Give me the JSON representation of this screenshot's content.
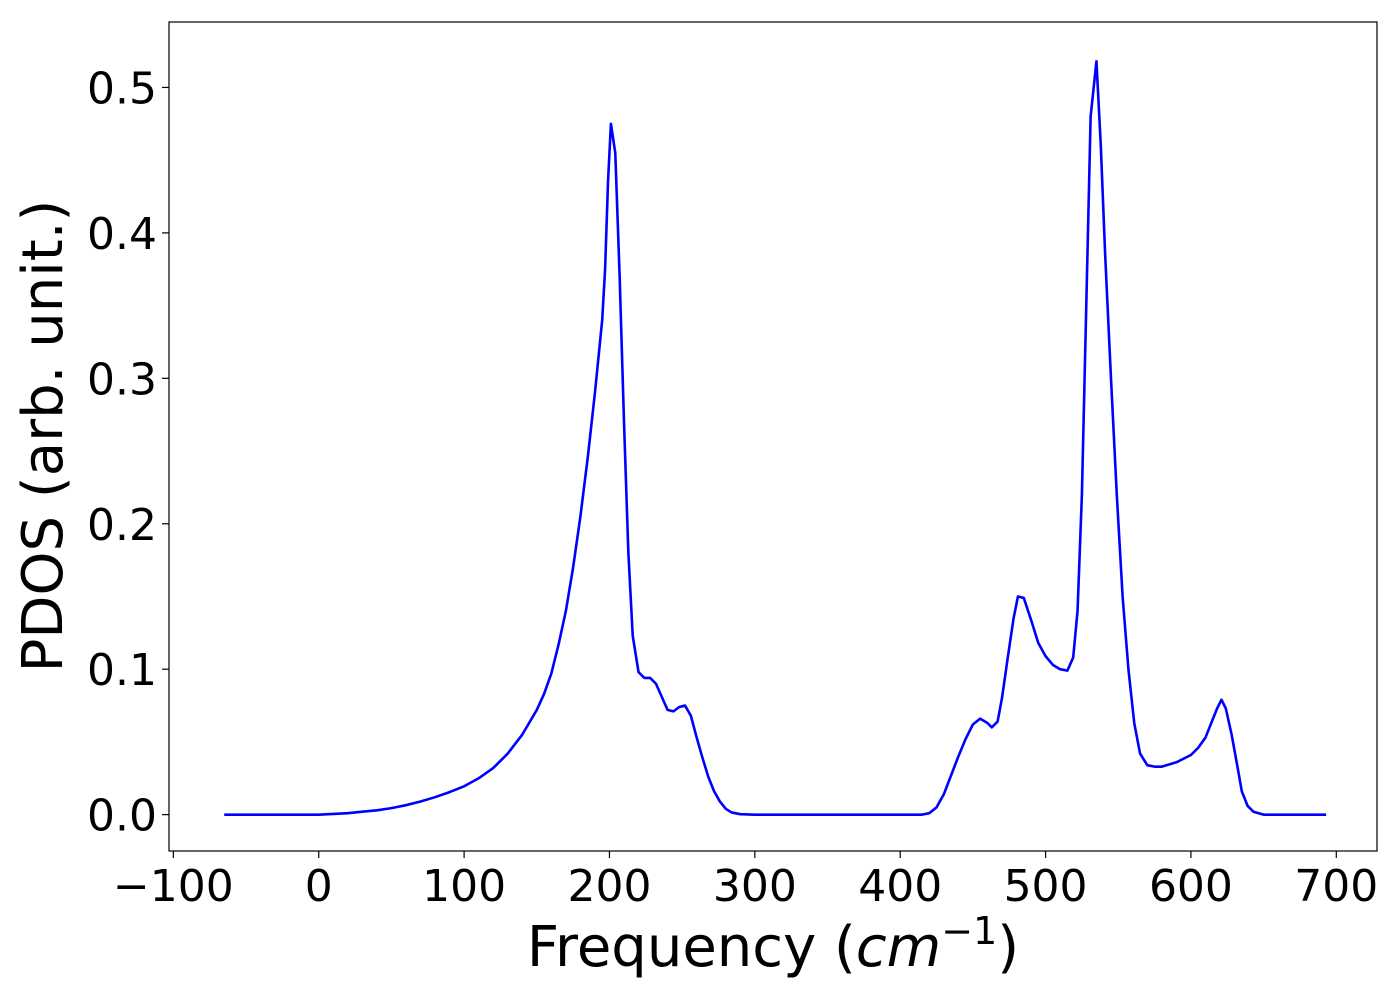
{
  "chart_data": {
    "type": "line",
    "title": "",
    "xlabel": "Frequency",
    "xlabel_unit_base": "cm",
    "xlabel_unit_exp": "−1",
    "ylabel": "PDOS (arb. unit.)",
    "xlim": [
      -103,
      728
    ],
    "ylim": [
      -0.025,
      0.545
    ],
    "xticks": [
      -100,
      0,
      100,
      200,
      300,
      400,
      500,
      600,
      700
    ],
    "xtick_labels": [
      "−100",
      "0",
      "100",
      "200",
      "300",
      "400",
      "500",
      "600",
      "700"
    ],
    "yticks": [
      0.0,
      0.1,
      0.2,
      0.3,
      0.4,
      0.5
    ],
    "ytick_labels": [
      "0.0",
      "0.1",
      "0.2",
      "0.3",
      "0.4",
      "0.5"
    ],
    "grid": false,
    "legend": "none",
    "series": [
      {
        "color": "#0000ff",
        "points": [
          [
            -65,
            0.0
          ],
          [
            -40,
            0.0
          ],
          [
            -20,
            0.0
          ],
          [
            0,
            0.0
          ],
          [
            10,
            0.0005
          ],
          [
            20,
            0.001
          ],
          [
            30,
            0.002
          ],
          [
            40,
            0.003
          ],
          [
            50,
            0.0045
          ],
          [
            60,
            0.0065
          ],
          [
            70,
            0.009
          ],
          [
            80,
            0.012
          ],
          [
            90,
            0.0155
          ],
          [
            100,
            0.0195
          ],
          [
            110,
            0.025
          ],
          [
            120,
            0.032
          ],
          [
            130,
            0.042
          ],
          [
            140,
            0.055
          ],
          [
            150,
            0.072
          ],
          [
            155,
            0.083
          ],
          [
            160,
            0.097
          ],
          [
            165,
            0.117
          ],
          [
            170,
            0.14
          ],
          [
            175,
            0.17
          ],
          [
            180,
            0.205
          ],
          [
            185,
            0.245
          ],
          [
            190,
            0.29
          ],
          [
            195,
            0.34
          ],
          [
            197,
            0.375
          ],
          [
            199,
            0.435
          ],
          [
            201,
            0.475
          ],
          [
            204,
            0.455
          ],
          [
            207,
            0.37
          ],
          [
            210,
            0.27
          ],
          [
            213,
            0.18
          ],
          [
            216,
            0.123
          ],
          [
            220,
            0.098
          ],
          [
            224,
            0.094
          ],
          [
            228,
            0.094
          ],
          [
            232,
            0.09
          ],
          [
            236,
            0.081
          ],
          [
            240,
            0.072
          ],
          [
            244,
            0.071
          ],
          [
            248,
            0.074
          ],
          [
            252,
            0.075
          ],
          [
            256,
            0.068
          ],
          [
            260,
            0.053
          ],
          [
            264,
            0.039
          ],
          [
            268,
            0.026
          ],
          [
            272,
            0.016
          ],
          [
            276,
            0.009
          ],
          [
            280,
            0.004
          ],
          [
            284,
            0.0015
          ],
          [
            290,
            0.0003
          ],
          [
            300,
            0.0
          ],
          [
            350,
            0.0
          ],
          [
            400,
            0.0
          ],
          [
            415,
            0.0
          ],
          [
            420,
            0.001
          ],
          [
            425,
            0.005
          ],
          [
            430,
            0.014
          ],
          [
            435,
            0.027
          ],
          [
            440,
            0.04
          ],
          [
            445,
            0.052
          ],
          [
            450,
            0.062
          ],
          [
            455,
            0.066
          ],
          [
            460,
            0.063
          ],
          [
            463,
            0.06
          ],
          [
            467,
            0.064
          ],
          [
            470,
            0.08
          ],
          [
            474,
            0.108
          ],
          [
            478,
            0.135
          ],
          [
            481,
            0.15
          ],
          [
            485,
            0.149
          ],
          [
            490,
            0.134
          ],
          [
            495,
            0.118
          ],
          [
            500,
            0.109
          ],
          [
            505,
            0.103
          ],
          [
            510,
            0.1
          ],
          [
            515,
            0.099
          ],
          [
            519,
            0.108
          ],
          [
            522,
            0.14
          ],
          [
            525,
            0.22
          ],
          [
            528,
            0.35
          ],
          [
            531,
            0.48
          ],
          [
            535,
            0.518
          ],
          [
            538,
            0.46
          ],
          [
            541,
            0.385
          ],
          [
            545,
            0.3
          ],
          [
            549,
            0.22
          ],
          [
            553,
            0.15
          ],
          [
            557,
            0.1
          ],
          [
            561,
            0.063
          ],
          [
            565,
            0.042
          ],
          [
            570,
            0.034
          ],
          [
            575,
            0.033
          ],
          [
            580,
            0.033
          ],
          [
            590,
            0.036
          ],
          [
            600,
            0.041
          ],
          [
            605,
            0.046
          ],
          [
            610,
            0.053
          ],
          [
            614,
            0.063
          ],
          [
            618,
            0.073
          ],
          [
            621,
            0.079
          ],
          [
            624,
            0.073
          ],
          [
            628,
            0.055
          ],
          [
            632,
            0.033
          ],
          [
            635,
            0.016
          ],
          [
            639,
            0.006
          ],
          [
            643,
            0.002
          ],
          [
            650,
            0.0
          ],
          [
            670,
            0.0
          ],
          [
            693,
            0.0
          ]
        ]
      }
    ]
  }
}
